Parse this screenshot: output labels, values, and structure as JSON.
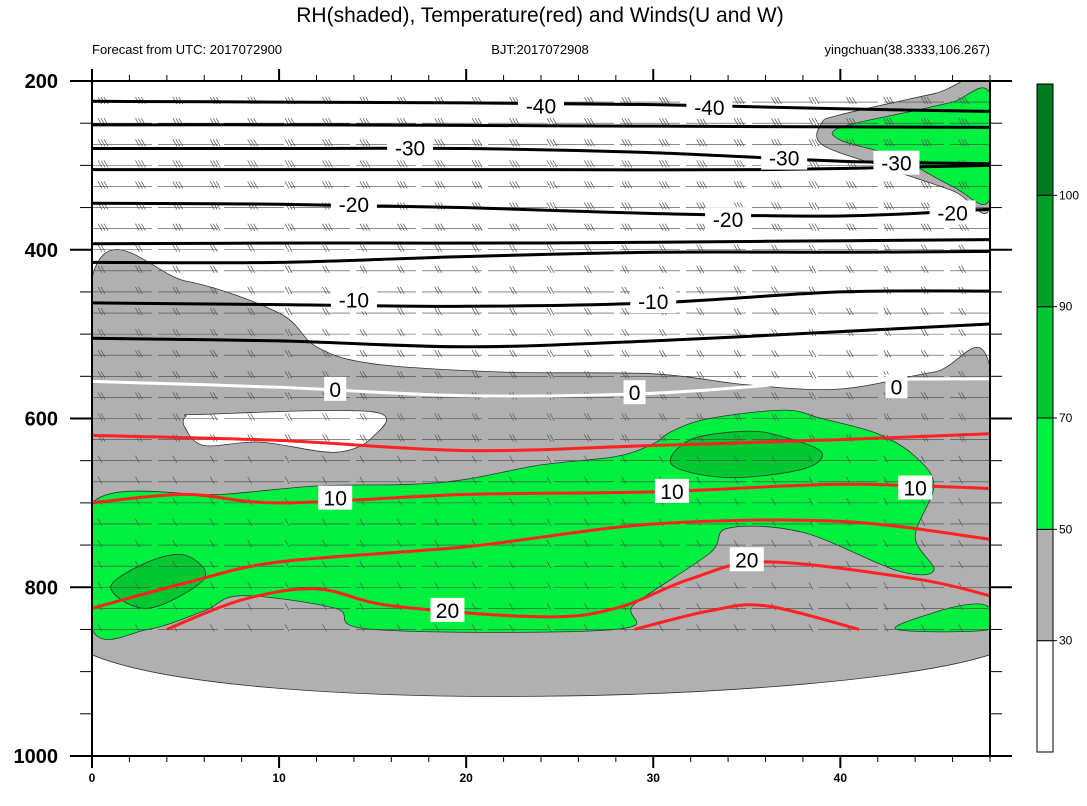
{
  "chart_data": {
    "type": "heatmap",
    "title": "RH(shaded), Temperature(red) and Winds(U and W)",
    "subtitle_left": "Forecast from UTC: 2017072900",
    "subtitle_center": "BJT:2017072908",
    "subtitle_right": "yingchuan(38.3333,106.267)",
    "x_axis": {
      "range": [
        0,
        48
      ],
      "ticks": [
        0,
        10,
        20,
        30,
        40
      ],
      "minor_step": 2
    },
    "y_axis": {
      "label": "",
      "range": [
        200,
        1000
      ],
      "reversed": true,
      "ticks": [
        200,
        400,
        600,
        800,
        1000
      ],
      "minor_step": 50
    },
    "rh_colorbar": {
      "levels": [
        30,
        50,
        70,
        90,
        100
      ],
      "colors": [
        "#ffffff",
        "#b0b0b0",
        "#00f040",
        "#00c830",
        "#00a028",
        "#007a1c"
      ],
      "labels": [
        "30",
        "50",
        "70",
        "90",
        "100"
      ]
    },
    "rh_fields": [
      {
        "level": "30-50",
        "color": "#b0b0b0",
        "outline": [
          [
            0,
            433
          ],
          [
            5,
            437
          ],
          [
            10,
            475
          ],
          [
            12,
            515
          ],
          [
            15,
            535
          ],
          [
            22,
            545
          ],
          [
            30,
            547
          ],
          [
            35,
            560
          ],
          [
            40,
            565
          ],
          [
            45,
            545
          ],
          [
            48,
            540
          ],
          [
            48,
            880
          ],
          [
            0,
            880
          ]
        ]
      },
      {
        "level": "30-50",
        "color": "#b0b0b0",
        "outline": [
          [
            39,
            250
          ],
          [
            40,
            240
          ],
          [
            45,
            215
          ],
          [
            48,
            200
          ],
          [
            48,
            350
          ],
          [
            46,
            330
          ],
          [
            42,
            300
          ],
          [
            39,
            275
          ]
        ]
      },
      {
        "level": "<30",
        "color": "#ffffff",
        "outline": [
          [
            5,
            598
          ],
          [
            6,
            595
          ],
          [
            15,
            592
          ],
          [
            15,
            622
          ],
          [
            13,
            640
          ],
          [
            9,
            628
          ],
          [
            6,
            632
          ],
          [
            5,
            612
          ]
        ]
      },
      {
        "level": "50-70",
        "color": "#00f040",
        "outline": [
          [
            0,
            700
          ],
          [
            7,
            690
          ],
          [
            12,
            680
          ],
          [
            17,
            678
          ],
          [
            20,
            672
          ],
          [
            24,
            655
          ],
          [
            28,
            645
          ],
          [
            30,
            630
          ],
          [
            31,
            615
          ],
          [
            33,
            600
          ],
          [
            37,
            590
          ],
          [
            39,
            600
          ],
          [
            42,
            618
          ],
          [
            44,
            645
          ],
          [
            45,
            680
          ],
          [
            44,
            740
          ],
          [
            45,
            780
          ],
          [
            43,
            780
          ],
          [
            38,
            735
          ],
          [
            34,
            730
          ],
          [
            33,
            760
          ],
          [
            29,
            820
          ],
          [
            28,
            850
          ],
          [
            15,
            850
          ],
          [
            13,
            825
          ],
          [
            8,
            810
          ],
          [
            6,
            828
          ],
          [
            3,
            850
          ],
          [
            0,
            850
          ]
        ]
      },
      {
        "level": "50-70",
        "color": "#00f040",
        "outline": [
          [
            40,
            255
          ],
          [
            44,
            235
          ],
          [
            46,
            225
          ],
          [
            48,
            215
          ],
          [
            48,
            340
          ],
          [
            46,
            325
          ],
          [
            43,
            290
          ],
          [
            40,
            270
          ]
        ]
      },
      {
        "level": "50-70",
        "color": "#00f040",
        "outline": [
          [
            43,
            850
          ],
          [
            45,
            830
          ],
          [
            47,
            820
          ],
          [
            48,
            825
          ],
          [
            48,
            850
          ]
        ]
      },
      {
        "level": "70-90",
        "color": "#00c830",
        "outline": [
          [
            31,
            655
          ],
          [
            32,
            625
          ],
          [
            35,
            615
          ],
          [
            37,
            622
          ],
          [
            39,
            640
          ],
          [
            38,
            660
          ],
          [
            34,
            670
          ]
        ]
      },
      {
        "level": "70-90",
        "color": "#00c830",
        "outline": [
          [
            1,
            800
          ],
          [
            3,
            770
          ],
          [
            5,
            762
          ],
          [
            6,
            790
          ],
          [
            3,
            825
          ]
        ]
      }
    ],
    "temperature_contours": [
      {
        "value": "-40",
        "color": "#000000",
        "labels_at": [
          [
            24,
            230
          ],
          [
            33,
            232
          ]
        ],
        "lines": [
          [
            [
              0,
              224
            ],
            [
              10,
              225
            ],
            [
              20,
              226
            ],
            [
              30,
              228
            ],
            [
              40,
              233
            ],
            [
              48,
              236
            ]
          ],
          [
            [
              0,
              252
            ],
            [
              12,
              252
            ],
            [
              24,
              253
            ],
            [
              36,
              254
            ],
            [
              48,
              255
            ]
          ]
        ]
      },
      {
        "value": "-30",
        "color": "#000000",
        "labels_at": [
          [
            17,
            280
          ],
          [
            37,
            292
          ],
          [
            43,
            298
          ]
        ],
        "lines": [
          [
            [
              0,
              280
            ],
            [
              10,
              280
            ],
            [
              20,
              280
            ],
            [
              30,
              285
            ],
            [
              40,
              295
            ],
            [
              48,
              298
            ]
          ],
          [
            [
              0,
              305
            ],
            [
              12,
              305
            ],
            [
              24,
              305
            ],
            [
              36,
              305
            ],
            [
              48,
              300
            ]
          ]
        ]
      },
      {
        "value": "-20",
        "color": "#000000",
        "labels_at": [
          [
            14,
            347
          ],
          [
            34,
            365
          ],
          [
            46,
            357
          ]
        ],
        "lines": [
          [
            [
              0,
              345
            ],
            [
              10,
              346
            ],
            [
              20,
              350
            ],
            [
              30,
              357
            ],
            [
              40,
              360
            ],
            [
              48,
              352
            ]
          ],
          [
            [
              0,
              393
            ],
            [
              12,
              392
            ],
            [
              24,
              392
            ],
            [
              36,
              390
            ],
            [
              48,
              388
            ]
          ],
          [
            [
              0,
              415
            ],
            [
              10,
              415
            ],
            [
              20,
              408
            ],
            [
              30,
              403
            ],
            [
              40,
              403
            ],
            [
              48,
              402
            ]
          ]
        ]
      },
      {
        "value": "-10",
        "color": "#000000",
        "labels_at": [
          [
            14,
            460
          ],
          [
            30,
            462
          ]
        ],
        "lines": [
          [
            [
              0,
              463
            ],
            [
              10,
              465
            ],
            [
              20,
              467
            ],
            [
              30,
              463
            ],
            [
              40,
              450
            ],
            [
              48,
              449
            ]
          ],
          [
            [
              0,
              505
            ],
            [
              10,
              508
            ],
            [
              20,
              515
            ],
            [
              30,
              508
            ],
            [
              40,
              497
            ],
            [
              48,
              488
            ]
          ]
        ]
      },
      {
        "value": "0",
        "color": "#ffffff",
        "labels_at": [
          [
            13,
            566
          ],
          [
            29,
            570
          ],
          [
            43,
            563
          ]
        ],
        "lines": [
          [
            [
              0,
              556
            ],
            [
              10,
              563
            ],
            [
              20,
              573
            ],
            [
              30,
              570
            ],
            [
              40,
              555
            ],
            [
              48,
              553
            ]
          ]
        ]
      },
      {
        "value": "10",
        "color": "#ff2020",
        "labels_at": [
          [
            13,
            695
          ],
          [
            31,
            687
          ],
          [
            44,
            683
          ]
        ],
        "lines": [
          [
            [
              0,
              620
            ],
            [
              10,
              626
            ],
            [
              20,
              638
            ],
            [
              30,
              632
            ],
            [
              40,
              625
            ],
            [
              48,
              618
            ]
          ],
          [
            [
              0,
              700
            ],
            [
              5,
              690
            ],
            [
              10,
              700
            ],
            [
              20,
              690
            ],
            [
              30,
              687
            ],
            [
              40,
              678
            ],
            [
              48,
              683
            ]
          ],
          [
            [
              0,
              825
            ],
            [
              5,
              795
            ],
            [
              10,
              770
            ],
            [
              20,
              752
            ],
            [
              30,
              725
            ],
            [
              40,
              722
            ],
            [
              48,
              743
            ]
          ]
        ]
      },
      {
        "value": "20",
        "color": "#ff2020",
        "labels_at": [
          [
            19,
            828
          ],
          [
            35,
            768
          ]
        ],
        "lines": [
          [
            [
              4,
              850
            ],
            [
              8,
              815
            ],
            [
              12,
              802
            ],
            [
              16,
              822
            ],
            [
              24,
              835
            ],
            [
              28,
              825
            ],
            [
              32,
              790
            ],
            [
              36,
              770
            ],
            [
              44,
              790
            ],
            [
              48,
              810
            ]
          ],
          [
            [
              29,
              850
            ],
            [
              33,
              828
            ],
            [
              36,
              822
            ],
            [
              41,
              850
            ]
          ]
        ]
      }
    ]
  }
}
